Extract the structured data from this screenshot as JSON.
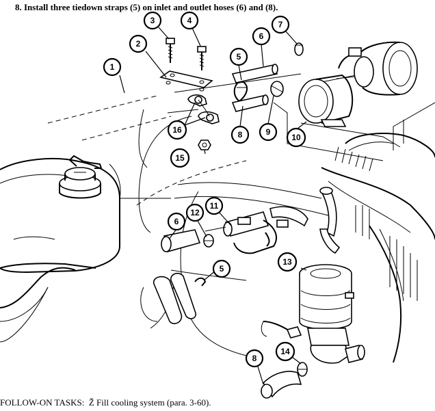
{
  "instruction": "8. Install three tiedown straps (5) on inlet and outlet hoses (6) and (8).",
  "follow_on": {
    "label": "FOLLOW-ON TASKS:",
    "bullet": "Ž",
    "text": "Fill cooling system (para. 3-60)."
  },
  "callouts": [
    {
      "id": "callout-1",
      "label": "1"
    },
    {
      "id": "callout-2",
      "label": "2"
    },
    {
      "id": "callout-3",
      "label": "3"
    },
    {
      "id": "callout-4",
      "label": "4"
    },
    {
      "id": "callout-5-top",
      "label": "5"
    },
    {
      "id": "callout-6-top",
      "label": "6"
    },
    {
      "id": "callout-7",
      "label": "7"
    },
    {
      "id": "callout-8-top",
      "label": "8"
    },
    {
      "id": "callout-9",
      "label": "9"
    },
    {
      "id": "callout-10",
      "label": "10"
    },
    {
      "id": "callout-16",
      "label": "16"
    },
    {
      "id": "callout-15",
      "label": "15"
    },
    {
      "id": "callout-11",
      "label": "11"
    },
    {
      "id": "callout-12",
      "label": "12"
    },
    {
      "id": "callout-6-mid",
      "label": "6"
    },
    {
      "id": "callout-13",
      "label": "13"
    },
    {
      "id": "callout-5-bottom",
      "label": "5"
    },
    {
      "id": "callout-14",
      "label": "14"
    },
    {
      "id": "callout-8-bottom",
      "label": "8"
    }
  ]
}
